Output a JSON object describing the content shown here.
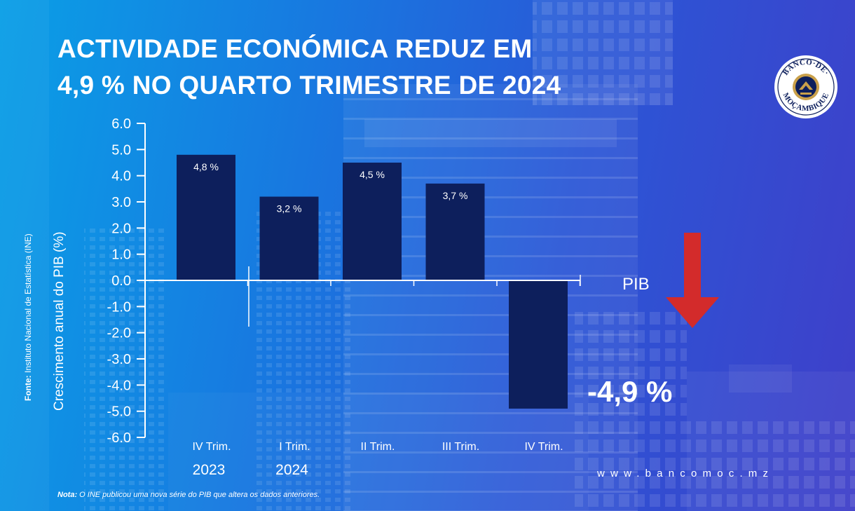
{
  "title_lines": [
    "ACTIVIDADE ECONÓMICA REDUZ EM",
    "4,9 % NO QUARTO TRIMESTRE DE 2024"
  ],
  "logo": {
    "text_top": "BANCO·DE·",
    "text_bottom": "MOÇAMBIQUE",
    "icon": "bank-seal-icon"
  },
  "source": {
    "label": "Fonte:",
    "text": " Instituto Nacional de Estatística (INE)"
  },
  "indicator": {
    "label": "PIB",
    "value": "-4,9 %",
    "arrow_icon": "down-arrow-icon",
    "arrow_color": "#d32b2b"
  },
  "website": "www.bancomoc.mz",
  "note": {
    "label": "Nota:",
    "text": " O INE publicou uma nova série do PIB que altera os dados anteriores."
  },
  "colors": {
    "bar": "#0d1f5c",
    "axis": "#ffffff"
  },
  "chart_data": {
    "type": "bar",
    "ylabel": "Crescimento anual do PIB (%)",
    "ylim": [
      -6.0,
      6.0
    ],
    "yticks": [
      "6.0",
      "5.0",
      "4.0",
      "3.0",
      "2.0",
      "1.0",
      "0.0",
      "-1.0",
      "-2.0",
      "-3.0",
      "-4.0",
      "-5.0",
      "-6.0"
    ],
    "categories": [
      "IV Trim.",
      "I Trim.",
      "II Trim.",
      "III Trim.",
      "IV Trim."
    ],
    "years": [
      "2023",
      "2024"
    ],
    "values": [
      4.8,
      3.2,
      4.5,
      3.7,
      -4.9
    ],
    "data_labels": [
      "4,8 %",
      "3,2 %",
      "4,5 %",
      "3,7 %",
      ""
    ]
  }
}
